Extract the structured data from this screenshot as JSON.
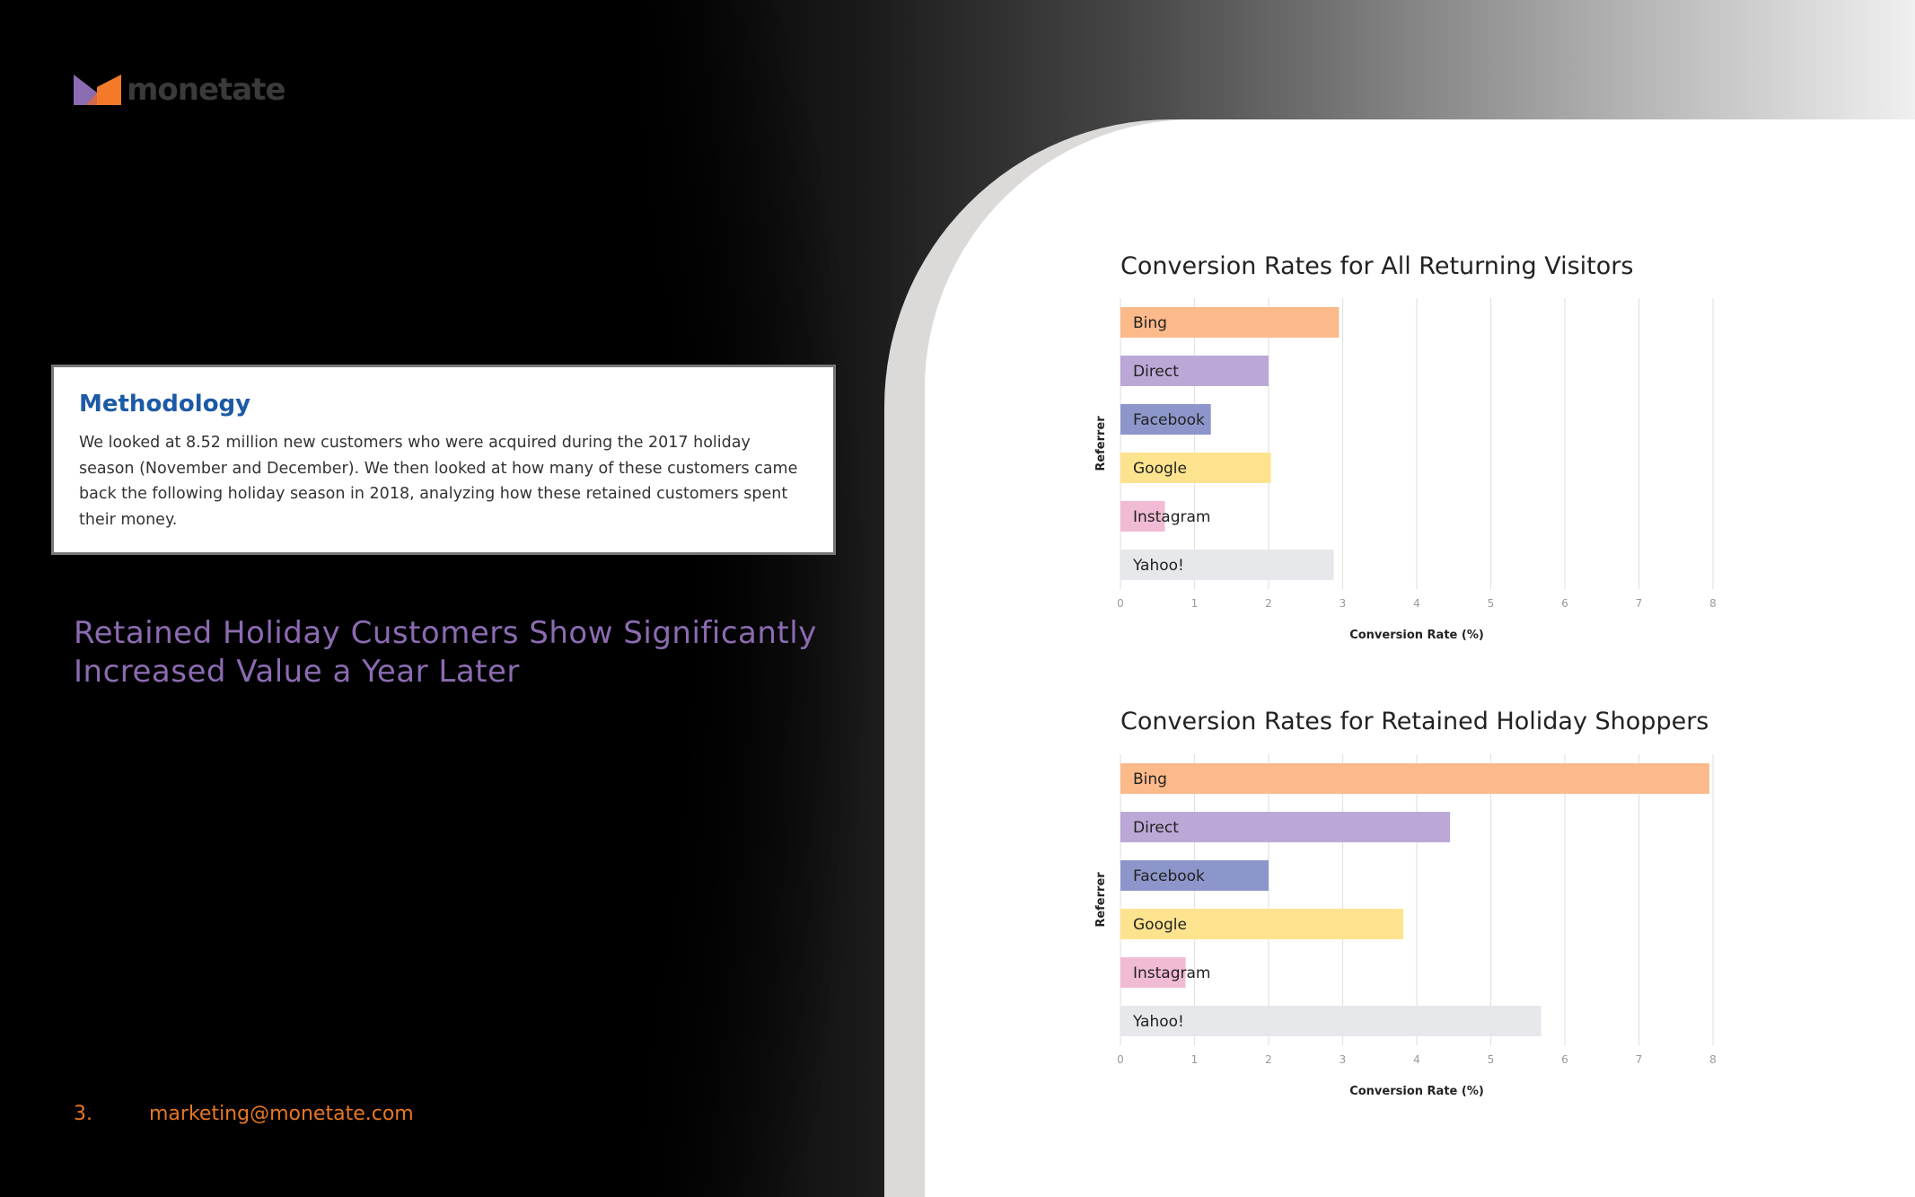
{
  "brand": {
    "name": "monetate",
    "colors": {
      "purple": "#8b6bb1",
      "orange": "#f47a2a"
    }
  },
  "methodology": {
    "title": "Methodology",
    "body": "We looked at 8.52 million new customers who were acquired during the 2017 holiday season (November and December). We then looked at how many of these customers came back the following holiday season in 2018, analyzing how these retained customers spent their money."
  },
  "headline": "Retained Holiday Customers Show Significantly Increased Value a Year Later",
  "footer": {
    "page": "3.",
    "email": "marketing@monetate.com"
  },
  "chart_data": [
    {
      "type": "bar",
      "orientation": "horizontal",
      "title": "Conversion Rates for All Returning Visitors",
      "xlabel": "Conversion Rate (%)",
      "ylabel": "Referrer",
      "xlim": [
        0,
        8
      ],
      "xticks": [
        "0",
        "1",
        "2",
        "3",
        "4",
        "5",
        "6",
        "7",
        "8"
      ],
      "grid": true,
      "categories": [
        "Bing",
        "Direct",
        "Facebook",
        "Google",
        "Instagram",
        "Yahoo!"
      ],
      "values": [
        2.95,
        2.0,
        1.22,
        2.03,
        0.6,
        2.88
      ],
      "colors": [
        "#fcb98a",
        "#bba8d6",
        "#8d96cb",
        "#fde38e",
        "#f2bbd4",
        "#e6e8ec"
      ]
    },
    {
      "type": "bar",
      "orientation": "horizontal",
      "title": "Conversion Rates for Retained Holiday Shoppers",
      "xlabel": "Conversion Rate (%)",
      "ylabel": "Referrer",
      "xlim": [
        0,
        8
      ],
      "xticks": [
        "0",
        "1",
        "2",
        "3",
        "4",
        "5",
        "6",
        "7",
        "8"
      ],
      "grid": true,
      "categories": [
        "Bing",
        "Direct",
        "Facebook",
        "Google",
        "Instagram",
        "Yahoo!"
      ],
      "values": [
        7.95,
        4.45,
        2.0,
        3.82,
        0.88,
        5.68
      ],
      "colors": [
        "#fcb98a",
        "#bba8d6",
        "#8d96cb",
        "#fde38e",
        "#f2bbd4",
        "#e6e8ec"
      ]
    }
  ]
}
